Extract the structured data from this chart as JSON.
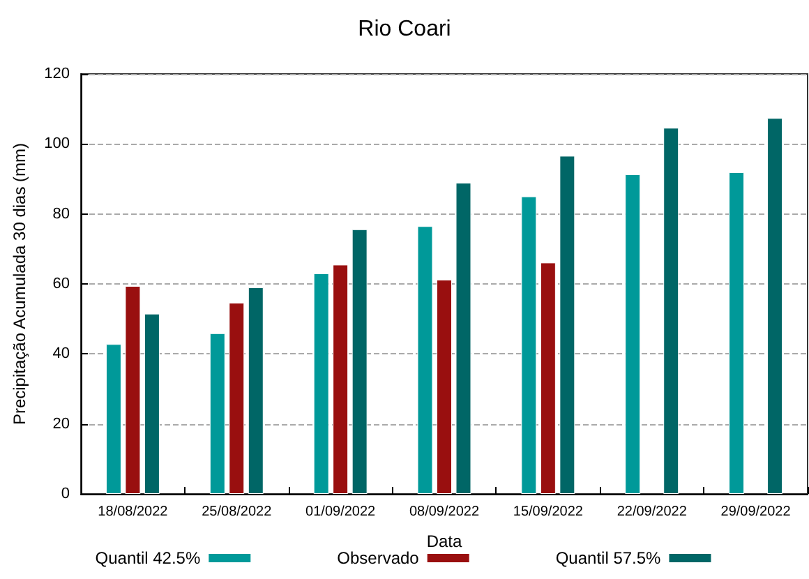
{
  "chart_data": {
    "type": "bar",
    "title": "Rio Coari",
    "xlabel": "Data",
    "ylabel": "Precipitação Acumulada 30 dias (mm)",
    "categories": [
      "18/08/2022",
      "25/08/2022",
      "01/09/2022",
      "08/09/2022",
      "15/09/2022",
      "22/09/2022",
      "29/09/2022"
    ],
    "series": [
      {
        "name": "Quantil 42.5%",
        "color": "#009999",
        "values": [
          42.8,
          45.9,
          63,
          76.5,
          85,
          91.3,
          91.9
        ]
      },
      {
        "name": "Observado",
        "color": "#990f0f",
        "values": [
          59.4,
          54.6,
          65.5,
          61.2,
          66.1,
          null,
          null
        ]
      },
      {
        "name": "Quantil 57.5%",
        "color": "#006666",
        "values": [
          51.5,
          59,
          75.6,
          88.9,
          96.6,
          104.6,
          107.4
        ]
      }
    ],
    "ylim": [
      0,
      120
    ],
    "yticks": [
      0,
      20,
      40,
      60,
      80,
      100,
      120
    ],
    "grid": "y",
    "legend": "bottom"
  }
}
